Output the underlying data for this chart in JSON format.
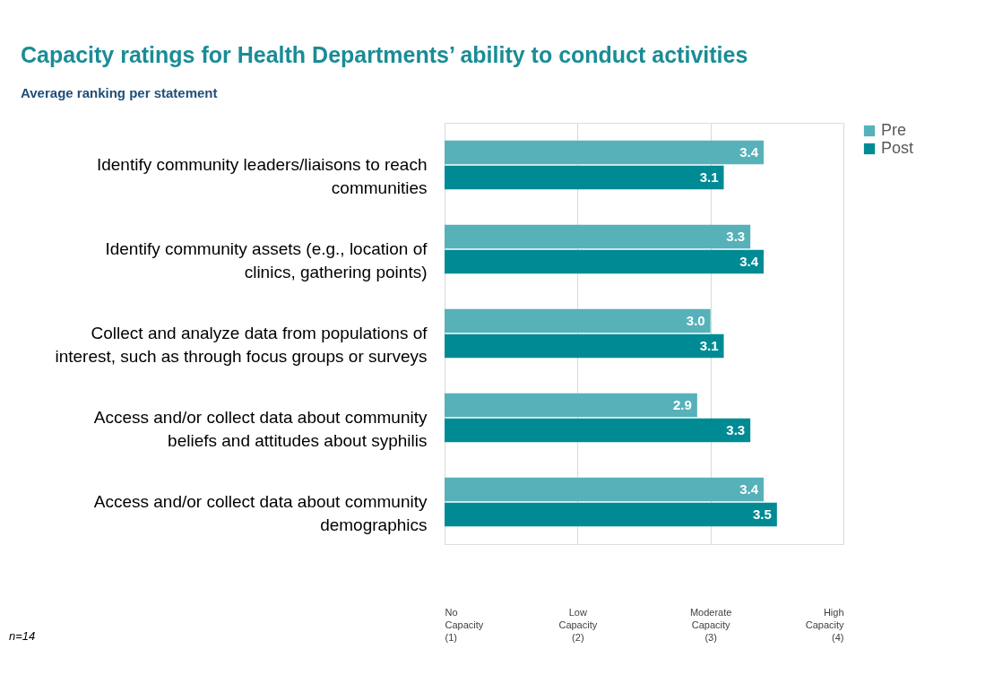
{
  "chart_data": {
    "type": "bar",
    "orientation": "horizontal",
    "title": "Capacity ratings for Health Departments’ ability to conduct activities",
    "subtitle": "Average ranking per statement",
    "categories": [
      "Identify community leaders/liaisons to reach communities",
      "Identify community assets (e.g., location of clinics, gathering points)",
      "Collect and analyze data from populations of interest, such as through focus groups or surveys",
      "Access and/or collect data about community beliefs and attitudes about syphilis",
      "Access and/or collect data about community demographics"
    ],
    "series": [
      {
        "name": "Pre",
        "color": "#56b1b9",
        "values": [
          3.4,
          3.3,
          3.0,
          2.9,
          3.4
        ],
        "value_labels": [
          "3.4",
          "3.3",
          "3.0",
          "2.9",
          "3.4"
        ]
      },
      {
        "name": "Post",
        "color": "#008b94",
        "values": [
          3.1,
          3.4,
          3.1,
          3.3,
          3.5
        ],
        "value_labels": [
          "3.1",
          "3.4",
          "3.1",
          "3.3",
          "3.5"
        ]
      }
    ],
    "xlim": [
      1,
      4
    ],
    "xticks": [
      {
        "value": 1,
        "label": "No Capacity (1)"
      },
      {
        "value": 2,
        "label": "Low Capacity (2)"
      },
      {
        "value": 3,
        "label": "Moderate Capacity (3)"
      },
      {
        "value": 4,
        "label": "High Capacity (4)"
      }
    ],
    "grid": "x",
    "legend": "right",
    "annotations": [
      "n=14"
    ]
  }
}
